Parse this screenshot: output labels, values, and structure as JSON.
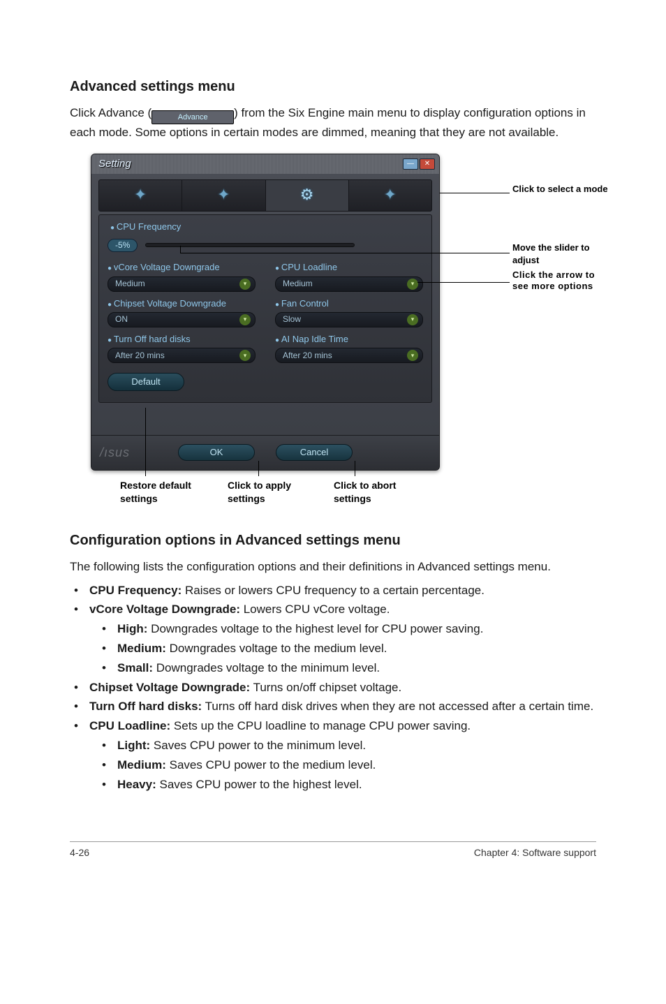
{
  "page": {
    "heading1": "Advanced settings menu",
    "intro_pre": "Click Advance (",
    "advance_label": "Advance",
    "intro_post": ") from the Six Engine main menu to display configuration options in each mode. Some options in certain modes are dimmed, meaning that they are not available.",
    "heading2": "Configuration options in Advanced settings menu",
    "config_intro": "The following lists the configuration options and their definitions in Advanced settings menu.",
    "footer_left": "4-26",
    "footer_right": "Chapter 4: Software support"
  },
  "window": {
    "title": "Setting",
    "close_glyph": "✕",
    "min_glyph": "—",
    "labels": {
      "cpu_freq": "CPU Frequency",
      "slider_value": "-5%",
      "vcore": "vCore Voltage Downgrade",
      "loadline": "CPU Loadline",
      "chipset": "Chipset Voltage Downgrade",
      "fan": "Fan Control",
      "turnoff": "Turn Off hard disks",
      "ainap": "AI Nap Idle Time"
    },
    "values": {
      "vcore": "Medium",
      "loadline": "Medium",
      "chipset": "ON",
      "fan": "Slow",
      "turnoff": "After 20 mins",
      "ainap": "After 20 mins"
    },
    "default_btn": "Default",
    "ok_btn": "OK",
    "cancel_btn": "Cancel",
    "mode_icons": [
      "✦",
      "✦",
      "⚙",
      "✦"
    ]
  },
  "annotations": {
    "select_mode": "Click to select a mode",
    "move_slider": "Move the slider to adjust",
    "click_arrow": "Click the arrow to see more options",
    "restore": "Restore default settings",
    "apply": "Click to apply settings",
    "abort": "Click to abort settings"
  },
  "options": [
    {
      "bold": "CPU Frequency:",
      "rest": " Raises or lowers CPU frequency to a certain percentage."
    },
    {
      "bold": "vCore Voltage Downgrade:",
      "rest": " Lowers CPU vCore voltage.",
      "sub": [
        {
          "bold": "High:",
          "rest": " Downgrades voltage to the highest level for CPU power saving."
        },
        {
          "bold": "Medium:",
          "rest": " Downgrades voltage to the medium level."
        },
        {
          "bold": "Small:",
          "rest": " Downgrades voltage to the minimum level."
        }
      ]
    },
    {
      "bold": "Chipset Voltage Downgrade:",
      "rest": " Turns on/off chipset voltage."
    },
    {
      "bold": "Turn Off hard disks:",
      "rest": " Turns off hard disk drives when they are not accessed after a certain time."
    },
    {
      "bold": "CPU Loadline:",
      "rest": " Sets up the CPU loadline to manage CPU power saving.",
      "sub": [
        {
          "bold": "Light:",
          "rest": " Saves CPU power to the minimum level."
        },
        {
          "bold": "Medium:",
          "rest": " Saves CPU power to the medium level."
        },
        {
          "bold": "Heavy:",
          "rest": " Saves CPU power to the highest level."
        }
      ]
    }
  ],
  "colors": {
    "window_bg_top": "#4b4e56",
    "window_bg_bottom": "#3a3d44",
    "label_color": "#8fc7ea",
    "combo_bg": "#1a1e24",
    "button_bg": "#235364"
  }
}
